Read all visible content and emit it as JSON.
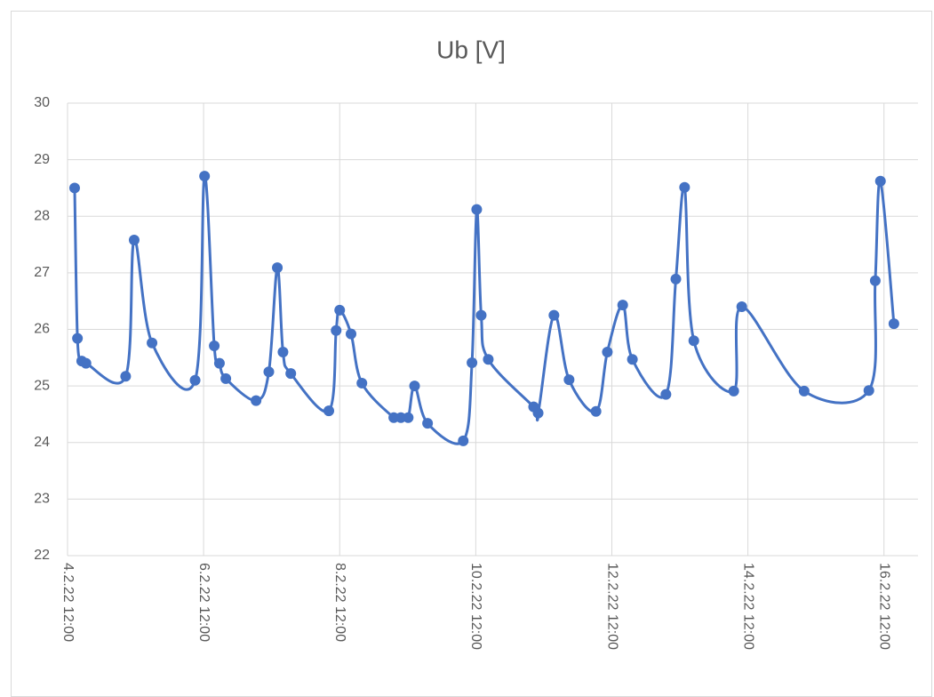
{
  "chart_data": {
    "type": "line",
    "title": "Ub [V]",
    "x": [
      "2022-02-04T14:30",
      "2022-02-04T15:30",
      "2022-02-04T17:00",
      "2022-02-04T18:30",
      "2022-02-05T08:30",
      "2022-02-05T11:30",
      "2022-02-05T17:48",
      "2022-02-06T09:00",
      "2022-02-06T12:20",
      "2022-02-06T15:45",
      "2022-02-06T17:35",
      "2022-02-06T19:50",
      "2022-02-07T06:30",
      "2022-02-07T11:00",
      "2022-02-07T14:00",
      "2022-02-07T16:00",
      "2022-02-07T18:45",
      "2022-02-08T08:10",
      "2022-02-08T10:45",
      "2022-02-08T12:00",
      "2022-02-08T16:00",
      "2022-02-08T19:50",
      "2022-02-09T07:05",
      "2022-02-09T09:35",
      "2022-02-09T12:10",
      "2022-02-09T14:25",
      "2022-02-09T19:00",
      "2022-02-10T07:35",
      "2022-02-10T10:40",
      "2022-02-10T12:20",
      "2022-02-10T13:55",
      "2022-02-10T16:25",
      "2022-02-11T08:25",
      "2022-02-11T10:00",
      "2022-02-11T15:35",
      "2022-02-11T20:55",
      "2022-02-12T06:25",
      "2022-02-12T10:25",
      "2022-02-12T15:50",
      "2022-02-12T19:15",
      "2022-02-13T07:05",
      "2022-02-13T10:35",
      "2022-02-13T13:40",
      "2022-02-13T16:55",
      "2022-02-14T07:00",
      "2022-02-14T09:50",
      "2022-02-15T07:50",
      "2022-02-16T06:40",
      "2022-02-16T08:55",
      "2022-02-16T10:45",
      "2022-02-16T15:30"
    ],
    "series": [
      {
        "name": "Ub [V]",
        "color": "#4472c4",
        "values": [
          28.5,
          25.84,
          25.44,
          25.4,
          25.17,
          27.58,
          25.76,
          25.1,
          28.71,
          25.71,
          25.4,
          25.13,
          24.74,
          25.25,
          27.09,
          25.6,
          25.22,
          24.56,
          25.98,
          26.34,
          25.92,
          25.05,
          24.44,
          24.44,
          24.44,
          25.0,
          24.34,
          24.03,
          25.41,
          28.12,
          26.25,
          25.47,
          24.63,
          24.52,
          26.25,
          25.11,
          24.55,
          25.6,
          26.43,
          25.47,
          24.85,
          26.89,
          28.51,
          25.8,
          24.91,
          26.4,
          24.91,
          24.92,
          26.86,
          28.62,
          26.1
        ]
      }
    ],
    "xlim": [
      "2022-02-04T12:00",
      "2022-02-17T00:00"
    ],
    "xticks": [
      {
        "value": "2022-02-04T12:00",
        "label": "4.2.22 12:00"
      },
      {
        "value": "2022-02-06T12:00",
        "label": "6.2.22 12:00"
      },
      {
        "value": "2022-02-08T12:00",
        "label": "8.2.22 12:00"
      },
      {
        "value": "2022-02-10T12:00",
        "label": "10.2.22 12:00"
      },
      {
        "value": "2022-02-12T12:00",
        "label": "12.2.22 12:00"
      },
      {
        "value": "2022-02-14T12:00",
        "label": "14.2.22 12:00"
      },
      {
        "value": "2022-02-16T12:00",
        "label": "16.2.22 12:00"
      }
    ],
    "ylim": [
      22,
      30
    ],
    "yticks": [
      22,
      23,
      24,
      25,
      26,
      27,
      28,
      29,
      30
    ],
    "grid": true
  }
}
